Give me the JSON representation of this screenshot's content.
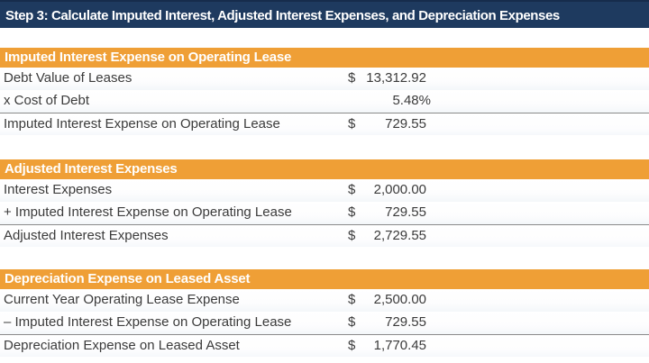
{
  "title_bar": {
    "title": "Step 3: Calculate Imputed Interest, Adjusted Interest Expenses, and Depreciation Expenses"
  },
  "colors": {
    "title_bar_bg": "#1E3A5F",
    "section_header_bg": "#EF9F36",
    "body_text": "#3B3B3B",
    "header_text": "#FFFFFF",
    "total_rule": "#8A8A8A"
  },
  "sections": [
    {
      "header": "Imputed Interest Expense on Operating Lease",
      "rows": [
        {
          "label": "Debt Value of Leases",
          "currency": "$",
          "amount": "13,312.92"
        },
        {
          "label": "x Cost of Debt",
          "currency": "",
          "amount": "5.48%"
        },
        {
          "label": "Imputed Interest Expense on Operating Lease",
          "currency": "$",
          "amount": "729.55"
        }
      ]
    },
    {
      "header": "Adjusted Interest Expenses",
      "rows": [
        {
          "label": "Interest Expenses",
          "currency": "$",
          "amount": "2,000.00"
        },
        {
          "label": "+ Imputed Interest Expense on Operating Lease",
          "currency": "$",
          "amount": "729.55"
        },
        {
          "label": "Adjusted Interest Expenses",
          "currency": "$",
          "amount": "2,729.55"
        }
      ]
    },
    {
      "header": "Depreciation Expense on Leased Asset",
      "rows": [
        {
          "label": "Current Year Operating Lease Expense",
          "currency": "$",
          "amount": "2,500.00"
        },
        {
          "label": "– Imputed Interest Expense on Operating Lease",
          "currency": "$",
          "amount": "729.55"
        },
        {
          "label": "Depreciation Expense on Leased Asset",
          "currency": "$",
          "amount": "1,770.45"
        }
      ]
    }
  ]
}
